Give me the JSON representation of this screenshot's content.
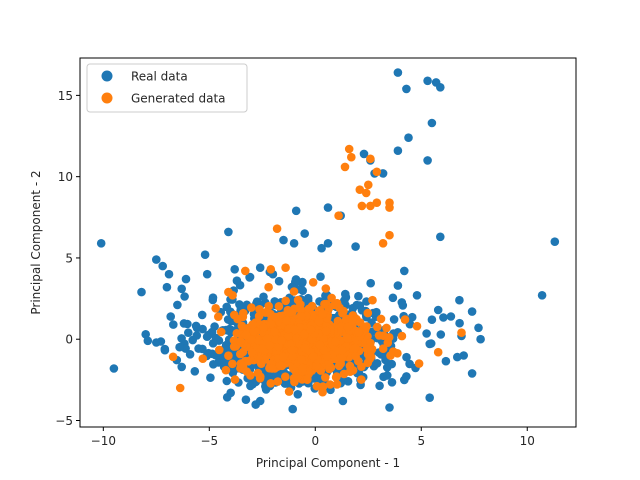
{
  "chart_data": {
    "type": "scatter",
    "title": "",
    "xlabel": "Principal Component - 1",
    "ylabel": "Principal Component - 2",
    "xlim": [
      -11.1,
      12.3
    ],
    "ylim": [
      -5.4,
      17.3
    ],
    "xticks": [
      -10,
      -5,
      0,
      5,
      10
    ],
    "yticks": [
      -5,
      0,
      5,
      10,
      15
    ],
    "grid": false,
    "legend_position": "top-left",
    "series": [
      {
        "name": "Real data",
        "color": "#1f77b4",
        "cloud": {
          "center": [
            -0.6,
            -0.1
          ],
          "sd": [
            2.3,
            1.4
          ],
          "count": 950
        },
        "points": [
          [
            -10.1,
            5.9
          ],
          [
            -9.5,
            -1.8
          ],
          [
            11.3,
            6.0
          ],
          [
            10.7,
            2.7
          ],
          [
            3.9,
            16.4
          ],
          [
            5.3,
            15.9
          ],
          [
            5.7,
            15.8
          ],
          [
            4.3,
            15.4
          ],
          [
            5.9,
            15.5
          ],
          [
            5.5,
            13.3
          ],
          [
            4.4,
            12.4
          ],
          [
            3.9,
            11.6
          ],
          [
            5.3,
            11.0
          ],
          [
            2.3,
            11.4
          ],
          [
            2.6,
            11.0
          ],
          [
            3.2,
            10.2
          ],
          [
            2.8,
            10.2
          ],
          [
            0.6,
            8.1
          ],
          [
            -0.9,
            7.9
          ],
          [
            1.2,
            7.6
          ],
          [
            5.9,
            6.3
          ],
          [
            -4.1,
            6.6
          ],
          [
            -1.5,
            6.1
          ],
          [
            -1.0,
            5.9
          ],
          [
            0.6,
            5.9
          ],
          [
            1.9,
            5.7
          ],
          [
            0.3,
            5.6
          ],
          [
            -0.5,
            6.5
          ],
          [
            -5.2,
            5.2
          ],
          [
            4.2,
            4.2
          ],
          [
            -7.5,
            4.9
          ],
          [
            -7.2,
            4.5
          ],
          [
            -6.9,
            4.0
          ],
          [
            -6.1,
            3.7
          ],
          [
            -5.1,
            4.0
          ],
          [
            -8.2,
            2.9
          ],
          [
            -7.0,
            3.2
          ],
          [
            -6.3,
            3.1
          ],
          [
            6.8,
            2.4
          ],
          [
            7.4,
            1.7
          ],
          [
            5.8,
            1.8
          ],
          [
            6.4,
            1.4
          ],
          [
            7.7,
            0.7
          ],
          [
            7.8,
            0.0
          ],
          [
            6.9,
            0.2
          ],
          [
            7.0,
            -1.0
          ],
          [
            6.7,
            -1.1
          ],
          [
            7.4,
            -2.1
          ],
          [
            5.4,
            -3.6
          ],
          [
            3.5,
            -4.2
          ],
          [
            -2.6,
            -3.8
          ],
          [
            -8.0,
            0.3
          ],
          [
            -7.9,
            -0.1
          ],
          [
            -6.3,
            -1.7
          ],
          [
            -7.1,
            -0.6
          ],
          [
            -7.5,
            -0.2
          ],
          [
            -6.7,
            0.9
          ],
          [
            3.9,
            3.3
          ],
          [
            4.8,
            2.7
          ],
          [
            5.5,
            1.2
          ],
          [
            -3.8,
            4.3
          ],
          [
            -2.6,
            4.4
          ],
          [
            -3.1,
            3.8
          ],
          [
            -2.0,
            4.0
          ],
          [
            -3.7,
            3.6
          ]
        ]
      },
      {
        "name": "Generated data",
        "color": "#ff7f0e",
        "cloud": {
          "center": [
            -0.5,
            -0.2
          ],
          "sd": [
            1.5,
            1.0
          ],
          "count": 850
        },
        "points": [
          [
            1.6,
            11.7
          ],
          [
            1.7,
            11.2
          ],
          [
            2.6,
            11.1
          ],
          [
            1.4,
            10.6
          ],
          [
            2.9,
            10.3
          ],
          [
            2.1,
            9.2
          ],
          [
            2.4,
            9.0
          ],
          [
            2.5,
            9.5
          ],
          [
            2.9,
            8.4
          ],
          [
            3.5,
            8.4
          ],
          [
            3.5,
            8.1
          ],
          [
            2.2,
            8.2
          ],
          [
            2.6,
            8.2
          ],
          [
            1.1,
            7.6
          ],
          [
            3.5,
            6.4
          ],
          [
            3.2,
            5.9
          ],
          [
            -1.8,
            6.8
          ],
          [
            -3.3,
            4.2
          ],
          [
            -2.1,
            4.3
          ],
          [
            -1.4,
            4.4
          ],
          [
            -3.9,
            2.7
          ],
          [
            -4.7,
            1.9
          ],
          [
            -4.1,
            2.9
          ],
          [
            -2.2,
            3.2
          ],
          [
            6.9,
            0.4
          ],
          [
            5.8,
            -0.8
          ],
          [
            4.9,
            -1.5
          ],
          [
            2.7,
            2.4
          ],
          [
            4.8,
            0.8
          ],
          [
            -0.1,
            3.5
          ]
        ]
      }
    ]
  }
}
